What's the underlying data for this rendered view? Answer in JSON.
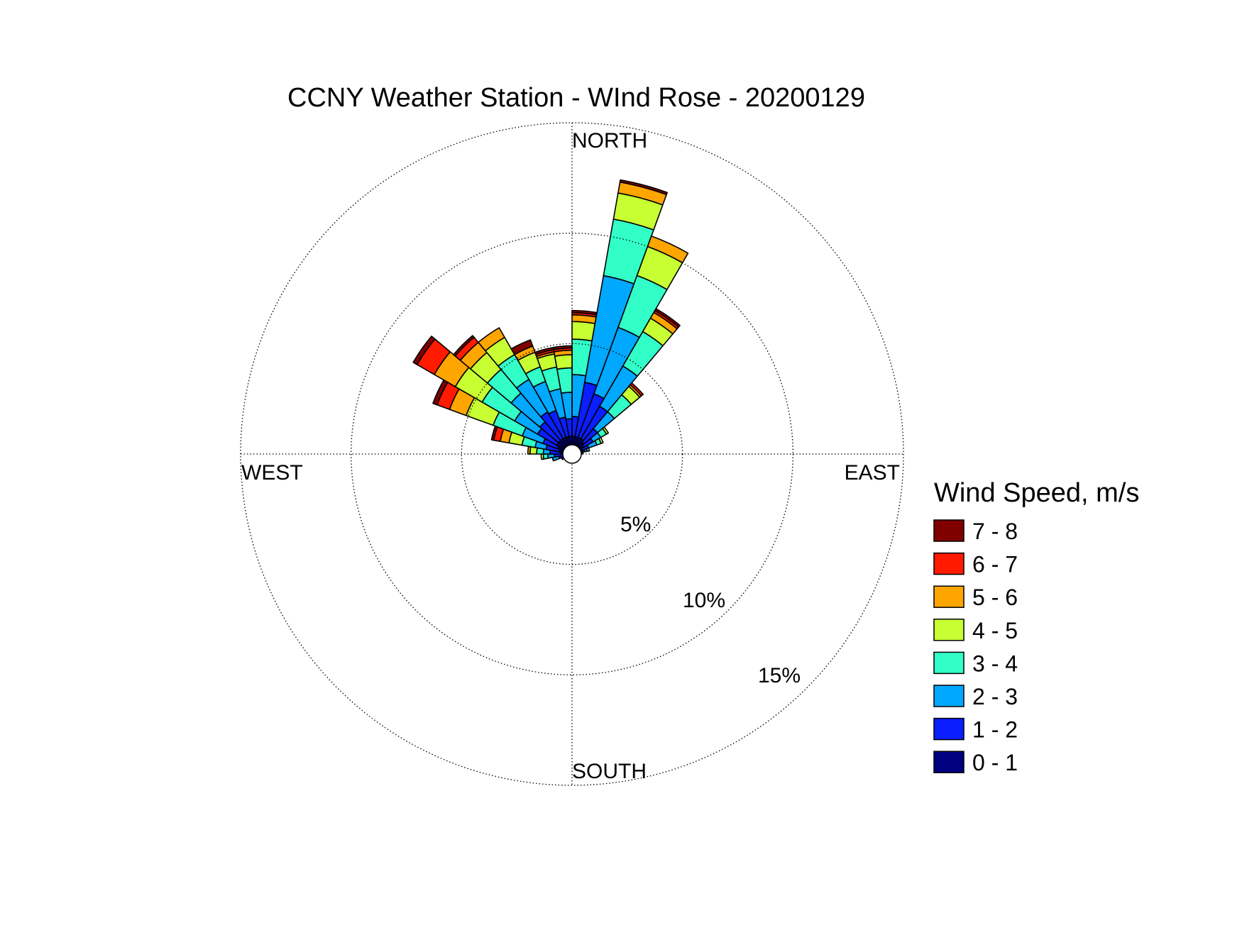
{
  "chart_data": {
    "type": "wind-rose",
    "title": "CCNY Weather Station - WInd Rose - 20200129",
    "directions": {
      "north": "NORTH",
      "east": "EAST",
      "south": "SOUTH",
      "west": "WEST"
    },
    "radial_axis": {
      "max": 15,
      "ticks": [
        5,
        10,
        15
      ],
      "tick_labels": [
        "5%",
        "10%",
        "15%"
      ]
    },
    "grid": true,
    "legend": {
      "title": "Wind Speed, m/s",
      "position": "right",
      "bins": [
        {
          "label": "7 - 8",
          "color": "#800000"
        },
        {
          "label": "6 - 7",
          "color": "#ff1a00"
        },
        {
          "label": "5 - 6",
          "color": "#ffa500"
        },
        {
          "label": "4 - 5",
          "color": "#c8ff32"
        },
        {
          "label": "3 - 4",
          "color": "#32ffc8"
        },
        {
          "label": "2 - 3",
          "color": "#00a8ff"
        },
        {
          "label": "1 - 2",
          "color": "#0a1eff"
        },
        {
          "label": "0 - 1",
          "color": "#000080"
        }
      ]
    },
    "bin_order": [
      "0 - 1",
      "1 - 2",
      "2 - 3",
      "3 - 4",
      "4 - 5",
      "5 - 6",
      "6 - 7",
      "7 - 8"
    ],
    "sector_width_deg": 10,
    "sectors": [
      {
        "direction": 5,
        "cumulative": [
          0.8,
          1.7,
          3.6,
          5.2,
          6.0,
          6.3,
          6.4,
          6.5
        ]
      },
      {
        "direction": 15,
        "cumulative": [
          0.8,
          3.3,
          8.2,
          10.8,
          12.0,
          12.5,
          12.5,
          12.6
        ]
      },
      {
        "direction": 25,
        "cumulative": [
          0.8,
          2.9,
          6.1,
          8.6,
          10.0,
          10.5,
          10.5,
          10.5
        ]
      },
      {
        "direction": 35,
        "cumulative": [
          0.8,
          2.5,
          4.6,
          6.4,
          7.1,
          7.4,
          7.5,
          7.6
        ]
      },
      {
        "direction": 45,
        "cumulative": [
          0.7,
          1.5,
          2.5,
          3.5,
          4.0,
          4.1,
          4.2,
          4.2
        ]
      },
      {
        "direction": 55,
        "cumulative": [
          0.6,
          1.1,
          1.5,
          1.8,
          1.9,
          1.9,
          1.9,
          1.9
        ]
      },
      {
        "direction": 65,
        "cumulative": [
          0.5,
          0.8,
          1.2,
          1.4,
          1.5,
          1.5,
          1.5,
          1.5
        ]
      },
      {
        "direction": 75,
        "cumulative": [
          0.5,
          0.6,
          0.7,
          0.8,
          0.8,
          0.8,
          0.8,
          0.8
        ]
      },
      {
        "direction": 85,
        "cumulative": [
          0.4,
          0.5,
          0.5,
          0.5,
          0.5,
          0.5,
          0.5,
          0.5
        ]
      },
      {
        "direction": 95,
        "cumulative": [
          0.3,
          0.4,
          0.4,
          0.4,
          0.4,
          0.4,
          0.4,
          0.4
        ]
      },
      {
        "direction": 105,
        "cumulative": [
          0.3,
          0.4,
          0.4,
          0.4,
          0.4,
          0.4,
          0.4,
          0.4
        ]
      },
      {
        "direction": 115,
        "cumulative": [
          0.3,
          0.4,
          0.4,
          0.4,
          0.4,
          0.4,
          0.4,
          0.4
        ]
      },
      {
        "direction": 125,
        "cumulative": [
          0.3,
          0.4,
          0.4,
          0.4,
          0.4,
          0.4,
          0.4,
          0.4
        ]
      },
      {
        "direction": 135,
        "cumulative": [
          0.3,
          0.3,
          0.3,
          0.3,
          0.3,
          0.3,
          0.3,
          0.3
        ]
      },
      {
        "direction": 145,
        "cumulative": [
          0.3,
          0.3,
          0.3,
          0.3,
          0.3,
          0.3,
          0.3,
          0.3
        ]
      },
      {
        "direction": 155,
        "cumulative": [
          0.3,
          0.3,
          0.3,
          0.3,
          0.3,
          0.3,
          0.3,
          0.3
        ]
      },
      {
        "direction": 165,
        "cumulative": [
          0.3,
          0.3,
          0.3,
          0.3,
          0.3,
          0.3,
          0.3,
          0.3
        ]
      },
      {
        "direction": 175,
        "cumulative": [
          0.3,
          0.3,
          0.3,
          0.3,
          0.3,
          0.3,
          0.3,
          0.3
        ]
      },
      {
        "direction": 185,
        "cumulative": [
          0.3,
          0.3,
          0.3,
          0.3,
          0.3,
          0.3,
          0.3,
          0.3
        ]
      },
      {
        "direction": 195,
        "cumulative": [
          0.3,
          0.3,
          0.3,
          0.3,
          0.3,
          0.3,
          0.3,
          0.3
        ]
      },
      {
        "direction": 205,
        "cumulative": [
          0.3,
          0.3,
          0.3,
          0.3,
          0.3,
          0.3,
          0.3,
          0.3
        ]
      },
      {
        "direction": 215,
        "cumulative": [
          0.3,
          0.3,
          0.3,
          0.3,
          0.3,
          0.3,
          0.3,
          0.3
        ]
      },
      {
        "direction": 225,
        "cumulative": [
          0.3,
          0.3,
          0.3,
          0.3,
          0.3,
          0.3,
          0.3,
          0.3
        ]
      },
      {
        "direction": 235,
        "cumulative": [
          0.3,
          0.4,
          0.4,
          0.4,
          0.4,
          0.4,
          0.4,
          0.4
        ]
      },
      {
        "direction": 245,
        "cumulative": [
          0.3,
          0.5,
          0.5,
          0.5,
          0.5,
          0.5,
          0.5,
          0.5
        ]
      },
      {
        "direction": 255,
        "cumulative": [
          0.3,
          0.6,
          0.9,
          0.9,
          0.9,
          0.9,
          0.9,
          0.9
        ]
      },
      {
        "direction": 265,
        "cumulative": [
          0.4,
          0.8,
          1.1,
          1.3,
          1.4,
          1.4,
          1.4,
          1.4
        ]
      },
      {
        "direction": 275,
        "cumulative": [
          0.5,
          1.0,
          1.3,
          1.6,
          1.9,
          2.0,
          2.0,
          2.0
        ]
      },
      {
        "direction": 285,
        "cumulative": [
          0.6,
          1.2,
          1.7,
          2.3,
          2.9,
          3.3,
          3.6,
          3.7
        ]
      },
      {
        "direction": 295,
        "cumulative": [
          0.7,
          1.4,
          2.4,
          3.8,
          5.1,
          5.9,
          6.5,
          6.7
        ]
      },
      {
        "direction": 305,
        "cumulative": [
          0.8,
          1.8,
          3.0,
          4.7,
          6.1,
          7.2,
          8.1,
          8.3
        ]
      },
      {
        "direction": 315,
        "cumulative": [
          0.8,
          1.9,
          3.6,
          5.0,
          6.0,
          6.6,
          6.9,
          7.0
        ]
      },
      {
        "direction": 325,
        "cumulative": [
          0.8,
          2.2,
          3.9,
          5.2,
          6.1,
          6.6,
          6.6,
          6.6
        ]
      },
      {
        "direction": 335,
        "cumulative": [
          0.8,
          2.1,
          3.5,
          4.2,
          4.9,
          5.2,
          5.2,
          5.5
        ]
      },
      {
        "direction": 345,
        "cumulative": [
          0.8,
          1.7,
          3.0,
          4.0,
          4.6,
          4.7,
          4.8,
          4.9
        ]
      },
      {
        "direction": 355,
        "cumulative": [
          0.8,
          1.6,
          2.8,
          3.9,
          4.5,
          4.7,
          4.8,
          4.9
        ]
      }
    ]
  }
}
